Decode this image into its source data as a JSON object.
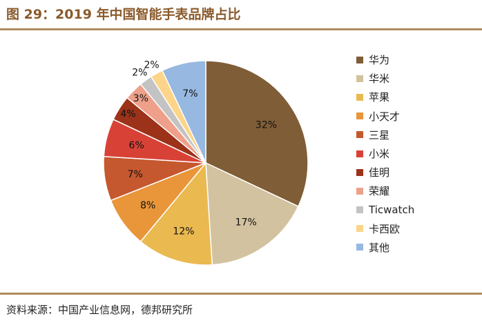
{
  "title": "图 29：2019 年中国智能手表品牌占比",
  "source": "资料来源：中国产业信息网，德邦研究所",
  "chart_data": {
    "type": "pie",
    "title": "2019 年中国智能手表品牌占比",
    "legend_position": "right",
    "slices": [
      {
        "name": "华为",
        "value": 32,
        "label": "32%",
        "color": "#7f5d36"
      },
      {
        "name": "华米",
        "value": 17,
        "label": "17%",
        "color": "#d2c29f"
      },
      {
        "name": "苹果",
        "value": 12,
        "label": "12%",
        "color": "#eab950"
      },
      {
        "name": "小天才",
        "value": 8,
        "label": "8%",
        "color": "#e9953a"
      },
      {
        "name": "三星",
        "value": 7,
        "label": "7%",
        "color": "#c5582e"
      },
      {
        "name": "小米",
        "value": 6,
        "label": "6%",
        "color": "#d84236"
      },
      {
        "name": "佳明",
        "value": 4,
        "label": "4%",
        "color": "#9b3219"
      },
      {
        "name": "荣耀",
        "value": 3,
        "label": "3%",
        "color": "#eea08a"
      },
      {
        "name": "Ticwatch",
        "value": 2,
        "label": "2%",
        "color": "#c3c3c3"
      },
      {
        "name": "卡西欧",
        "value": 2,
        "label": "2%",
        "color": "#fcd58a"
      },
      {
        "name": "其他",
        "value": 7,
        "label": "7%",
        "color": "#97b8e0"
      }
    ]
  }
}
